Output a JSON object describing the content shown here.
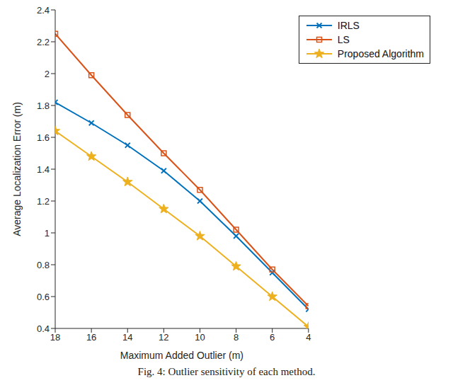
{
  "chart_data": {
    "type": "line",
    "x_label": "Maximum Added Outlier (m)",
    "y_label": "Average Localization Error (m)",
    "caption": "Fig. 4: Outlier sensitivity of each method.",
    "x": [
      18,
      16,
      14,
      12,
      10,
      8,
      6,
      4
    ],
    "xlim": [
      18,
      4
    ],
    "xticks": [
      18,
      16,
      14,
      12,
      10,
      8,
      6,
      4
    ],
    "ylim": [
      0.4,
      2.4
    ],
    "yticks": [
      0.4,
      0.6,
      0.8,
      1,
      1.2,
      1.4,
      1.6,
      1.8,
      2,
      2.2,
      2.4
    ],
    "grid": false,
    "legend": "top-right",
    "series": [
      {
        "name": "IRLS",
        "color": "#0072BD",
        "marker": "x",
        "values": [
          1.82,
          1.69,
          1.55,
          1.39,
          1.2,
          0.98,
          0.75,
          0.52
        ]
      },
      {
        "name": "LS",
        "color": "#D95319",
        "marker": "square",
        "values": [
          2.25,
          1.99,
          1.74,
          1.5,
          1.27,
          1.02,
          0.77,
          0.54
        ]
      },
      {
        "name": "Proposed Algorithm",
        "color": "#EDB120",
        "marker": "star",
        "values": [
          1.64,
          1.48,
          1.32,
          1.15,
          0.98,
          0.79,
          0.6,
          0.41
        ]
      }
    ]
  }
}
